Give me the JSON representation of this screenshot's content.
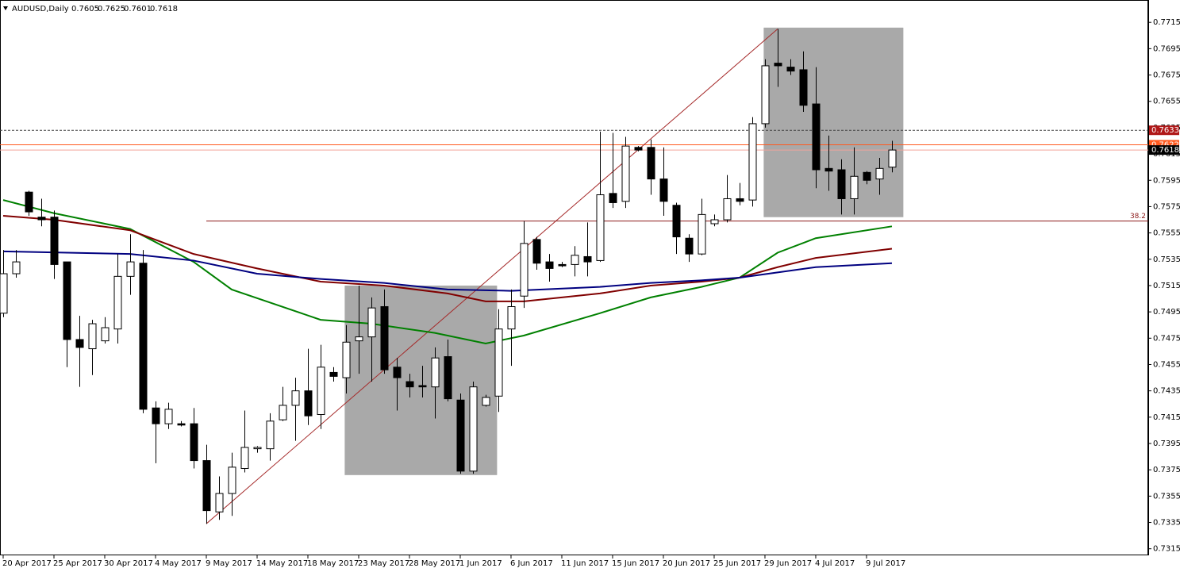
{
  "chart_data": {
    "type": "candlestick",
    "title": "AUDUSD,Daily",
    "last": {
      "open": 0.7605,
      "high": 0.7625,
      "low": 0.7601,
      "close": 0.7618
    },
    "xlim": [
      -0.25,
      90.19
    ],
    "ylim": [
      0.731,
      0.7732
    ],
    "xticks": [
      {
        "value": 0,
        "label": "20 Apr 2017"
      },
      {
        "value": 4,
        "label": "25 Apr 2017"
      },
      {
        "value": 8,
        "label": "30 Apr 2017"
      },
      {
        "value": 12,
        "label": "4 May 2017"
      },
      {
        "value": 16,
        "label": "9 May 2017"
      },
      {
        "value": 20,
        "label": "14 May 2017"
      },
      {
        "value": 24,
        "label": "18 May 2017"
      },
      {
        "value": 28,
        "label": "23 May 2017"
      },
      {
        "value": 32,
        "label": "28 May 2017"
      },
      {
        "value": 36,
        "label": "1 Jun 2017"
      },
      {
        "value": 40,
        "label": "6 Jun 2017"
      },
      {
        "value": 44,
        "label": "11 Jun 2017"
      },
      {
        "value": 48,
        "label": "15 Jun 2017"
      },
      {
        "value": 52,
        "label": "20 Jun 2017"
      },
      {
        "value": 56,
        "label": "25 Jun 2017"
      },
      {
        "value": 60,
        "label": "29 Jun 2017"
      },
      {
        "value": 64,
        "label": "4 Jul 2017"
      },
      {
        "value": 68,
        "label": "9 Jul 2017"
      }
    ],
    "yticks": [
      0.7715,
      0.7695,
      0.7675,
      0.7655,
      0.7635,
      0.7615,
      0.7595,
      0.7575,
      0.7555,
      0.7535,
      0.7515,
      0.7495,
      0.7475,
      0.7455,
      0.7435,
      0.7415,
      0.7395,
      0.7375,
      0.7355,
      0.7335,
      0.7315
    ],
    "open": [
      0.7494,
      0.7524,
      0.7586,
      0.7567,
      0.7567,
      0.7533,
      0.7474,
      0.7467,
      0.7473,
      0.7482,
      0.7522,
      0.7532,
      0.7422,
      0.741,
      0.741,
      0.741,
      0.7382,
      0.7343,
      0.7357,
      0.7376,
      0.7391,
      0.7391,
      0.7413,
      0.7424,
      0.7435,
      0.7417,
      0.7449,
      0.7445,
      0.7473,
      0.7476,
      0.7499,
      0.7453,
      0.7442,
      0.7439,
      0.7438,
      0.7461,
      0.7428,
      0.7374,
      0.7424,
      0.7431,
      0.7482,
      0.7507,
      0.755,
      0.7533,
      0.7531,
      0.7531,
      0.7537,
      0.7534,
      0.7585,
      0.7579,
      0.762,
      0.762,
      0.7596,
      0.7576,
      0.7551,
      0.7539,
      0.7562,
      0.7565,
      0.7581,
      0.758,
      0.7638,
      0.7684,
      0.7681,
      0.7679,
      0.7653,
      0.7604,
      0.7603,
      0.7581,
      0.7601,
      0.7596,
      0.7605
    ],
    "high": [
      0.7542,
      0.7542,
      0.7587,
      0.7581,
      0.7572,
      0.7533,
      0.7492,
      0.7489,
      0.7491,
      0.7539,
      0.7554,
      0.7542,
      0.7427,
      0.7426,
      0.7412,
      0.7422,
      0.7394,
      0.737,
      0.7388,
      0.742,
      0.7393,
      0.7418,
      0.7438,
      0.7445,
      0.7467,
      0.747,
      0.7453,
      0.7485,
      0.7515,
      0.7506,
      0.7512,
      0.746,
      0.7448,
      0.7454,
      0.7468,
      0.7474,
      0.7433,
      0.7442,
      0.7432,
      0.7497,
      0.7512,
      0.7564,
      0.7552,
      0.7539,
      0.7533,
      0.7545,
      0.7563,
      0.7632,
      0.7631,
      0.7628,
      0.7621,
      0.7626,
      0.762,
      0.7578,
      0.7554,
      0.7581,
      0.7569,
      0.7599,
      0.7593,
      0.7643,
      0.7687,
      0.771,
      0.7687,
      0.7693,
      0.7681,
      0.7629,
      0.7611,
      0.762,
      0.7602,
      0.7612,
      0.7625
    ],
    "low": [
      0.7491,
      0.7521,
      0.7568,
      0.756,
      0.752,
      0.7453,
      0.7438,
      0.7447,
      0.7471,
      0.7471,
      0.7508,
      0.7418,
      0.738,
      0.7406,
      0.7408,
      0.7376,
      0.7334,
      0.7337,
      0.734,
      0.7373,
      0.7388,
      0.7382,
      0.7412,
      0.7397,
      0.7409,
      0.7406,
      0.7442,
      0.7433,
      0.7448,
      0.7442,
      0.7448,
      0.742,
      0.743,
      0.743,
      0.7414,
      0.7427,
      0.7372,
      0.7372,
      0.7423,
      0.7419,
      0.7454,
      0.7498,
      0.7527,
      0.7518,
      0.7529,
      0.7522,
      0.7522,
      0.7533,
      0.7574,
      0.7574,
      0.7617,
      0.7584,
      0.7568,
      0.7539,
      0.7533,
      0.7538,
      0.756,
      0.7563,
      0.7576,
      0.7575,
      0.7635,
      0.7666,
      0.7675,
      0.7647,
      0.7589,
      0.7587,
      0.7569,
      0.7569,
      0.7592,
      0.7584,
      0.7601
    ],
    "close": [
      0.7524,
      0.7533,
      0.7571,
      0.7565,
      0.7531,
      0.7474,
      0.7468,
      0.7486,
      0.7483,
      0.7522,
      0.7533,
      0.7421,
      0.741,
      0.7421,
      0.7409,
      0.7382,
      0.7344,
      0.7357,
      0.7377,
      0.7392,
      0.7392,
      0.7412,
      0.7424,
      0.7435,
      0.7416,
      0.7453,
      0.7446,
      0.7472,
      0.7476,
      0.7498,
      0.7451,
      0.7445,
      0.7438,
      0.7438,
      0.746,
      0.7429,
      0.7374,
      0.7438,
      0.743,
      0.7482,
      0.7499,
      0.7547,
      0.7532,
      0.7528,
      0.753,
      0.7538,
      0.7533,
      0.7584,
      0.7578,
      0.7621,
      0.7618,
      0.7596,
      0.7579,
      0.7552,
      0.7539,
      0.7569,
      0.7565,
      0.7581,
      0.7579,
      0.7638,
      0.7682,
      0.7682,
      0.7678,
      0.7652,
      0.7603,
      0.7602,
      0.7581,
      0.7598,
      0.7595,
      0.7604,
      0.7618
    ],
    "up_color": "#ffffff",
    "down_color": "#000000",
    "moving_averages": [
      {
        "color": "#008000",
        "x": [
          0,
          4,
          10,
          15,
          18,
          25,
          29,
          34,
          38,
          41,
          47,
          51,
          55,
          58,
          61,
          64,
          70
        ],
        "values": [
          0.758,
          0.757,
          0.7558,
          0.7533,
          0.7512,
          0.7489,
          0.7486,
          0.7479,
          0.7471,
          0.7477,
          0.7494,
          0.7506,
          0.7514,
          0.7521,
          0.754,
          0.7551,
          0.756
        ]
      },
      {
        "color": "#800000",
        "x": [
          0,
          4,
          10,
          15,
          20,
          25,
          30,
          35,
          38,
          41,
          47,
          51,
          55,
          58,
          61,
          64,
          70
        ],
        "values": [
          0.7568,
          0.7565,
          0.7557,
          0.7539,
          0.7528,
          0.7518,
          0.7515,
          0.7509,
          0.7503,
          0.7503,
          0.7509,
          0.7515,
          0.7518,
          0.7521,
          0.7529,
          0.7536,
          0.7543
        ]
      },
      {
        "color": "#000080",
        "x": [
          0,
          10,
          15,
          20,
          25,
          30,
          35,
          40,
          47,
          51,
          55,
          58,
          61,
          64,
          70
        ],
        "values": [
          0.7541,
          0.7539,
          0.7534,
          0.7524,
          0.752,
          0.7517,
          0.7512,
          0.7511,
          0.7514,
          0.7517,
          0.7519,
          0.7521,
          0.7525,
          0.7529,
          0.7532
        ]
      }
    ],
    "zones": [
      {
        "x": [
          26.9,
          38.9
        ],
        "y": [
          0.7371,
          0.7515
        ]
      },
      {
        "x": [
          59.9,
          70.9
        ],
        "y": [
          0.7567,
          0.7711
        ]
      }
    ],
    "trend_line": {
      "x": [
        16,
        61
      ],
      "values": [
        0.7334,
        0.771
      ],
      "color": "#a52a2a"
    },
    "fib_level": {
      "label": "38.2",
      "value": 0.7564,
      "from": 16,
      "color": "#8b1a1a"
    },
    "price_lines": [
      {
        "value": 0.7633,
        "color": "#444444",
        "dashed": true,
        "label_color": "#b01818"
      },
      {
        "value": 0.7622,
        "color": "#ff5a1f",
        "dashed": false,
        "label_color": "#ff5a1f"
      },
      {
        "value": 0.7618,
        "color": "#f2a39a",
        "dashed": false,
        "label_color": "#000000"
      }
    ]
  }
}
